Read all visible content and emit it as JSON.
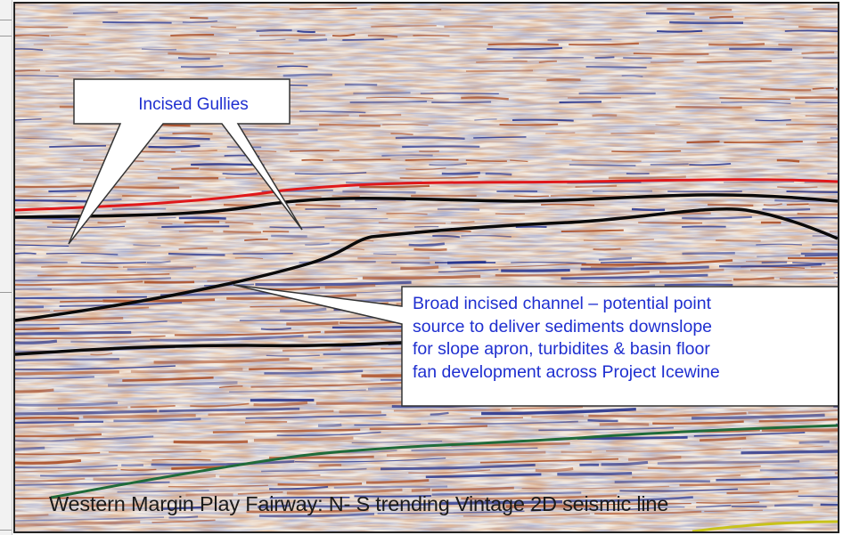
{
  "callouts": {
    "gullies": {
      "label": "Incised Gullies"
    },
    "channel": {
      "lines": [
        "Broad incised channel – potential point",
        "source to deliver sediments downslope",
        "for slope apron, turbidites &  basin floor",
        "fan development across Project Icewine"
      ]
    }
  },
  "caption": "Western Margin Play Fairway: N- S trending Vintage 2D seismic line",
  "colors": {
    "callout_text": "#1f2fd0",
    "horizon_red": "#e0181a",
    "horizon_black": "#0a0a0a",
    "horizon_green": "#1f6b3a",
    "seismic_blue": "#1b2a8a",
    "seismic_brown": "#a8441a"
  },
  "icons": {
    "seismic_image": "seismic-section-image"
  }
}
